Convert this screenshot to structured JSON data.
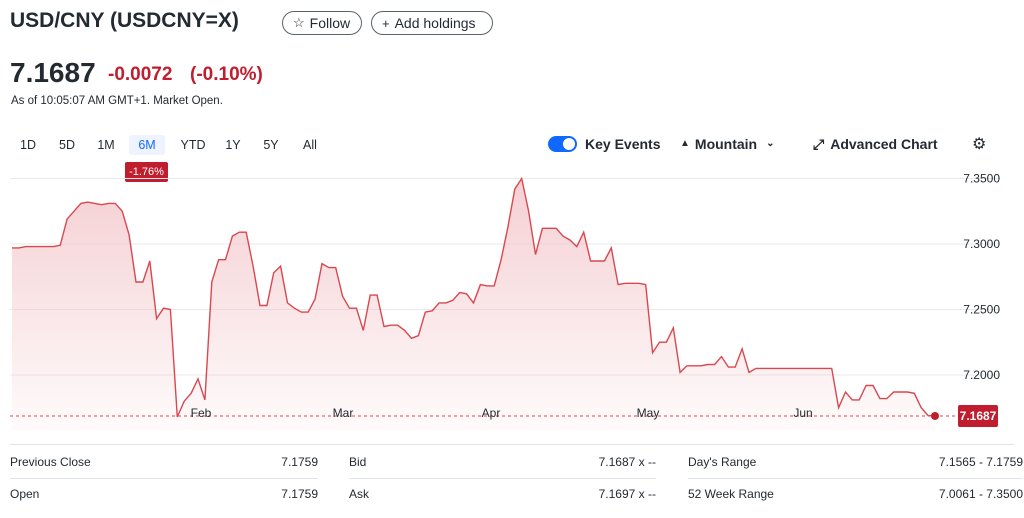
{
  "header": {
    "title": "USD/CNY (USDCNY=X)",
    "follow_label": "Follow",
    "add_holdings_label": "Add holdings"
  },
  "quote": {
    "price": "7.1687",
    "change": "-0.0072",
    "change_pct": "(-0.10%)",
    "as_of": "As of 10:05:07 AM GMT+1. Market Open.",
    "negative_color": "#c01e2e"
  },
  "ranges": [
    "1D",
    "5D",
    "1M",
    "6M",
    "YTD",
    "1Y",
    "5Y",
    "All"
  ],
  "selected_range": "6M",
  "range_performance": "-1.76%",
  "controls": {
    "key_events_label": "Key Events",
    "key_events_on": true,
    "chart_type_label": "Mountain",
    "advanced_label": "Advanced Chart"
  },
  "chart_data": {
    "type": "area",
    "x_ticks": [
      "Feb",
      "Mar",
      "Apr",
      "May",
      "Jun"
    ],
    "y_ticks": [
      "7.3500",
      "7.3000",
      "7.2500",
      "7.2000"
    ],
    "ylim": [
      7.158,
      7.358
    ],
    "last_value_label": "7.1687",
    "series": [
      {
        "values": [
          7.297,
          7.297,
          7.298,
          7.298,
          7.298,
          7.298,
          7.298,
          7.299,
          7.319,
          7.325,
          7.331,
          7.332,
          7.331,
          7.33,
          7.331,
          7.331,
          7.325,
          7.307,
          7.271,
          7.271,
          7.287,
          7.243,
          7.251,
          7.25,
          7.168,
          7.18,
          7.186,
          7.197,
          7.181,
          7.271,
          7.288,
          7.288,
          7.306,
          7.309,
          7.309,
          7.283,
          7.253,
          7.253,
          7.278,
          7.283,
          7.255,
          7.251,
          7.248,
          7.248,
          7.258,
          7.285,
          7.282,
          7.282,
          7.26,
          7.251,
          7.251,
          7.234,
          7.261,
          7.261,
          7.237,
          7.238,
          7.238,
          7.234,
          7.228,
          7.23,
          7.248,
          7.249,
          7.255,
          7.255,
          7.257,
          7.263,
          7.262,
          7.255,
          7.269,
          7.268,
          7.268,
          7.288,
          7.313,
          7.342,
          7.35,
          7.325,
          7.292,
          7.312,
          7.312,
          7.312,
          7.306,
          7.303,
          7.298,
          7.309,
          7.287,
          7.287,
          7.287,
          7.297,
          7.269,
          7.27,
          7.27,
          7.27,
          7.269,
          7.217,
          7.225,
          7.225,
          7.236,
          7.202,
          7.207,
          7.207,
          7.207,
          7.208,
          7.208,
          7.214,
          7.206,
          7.206,
          7.22,
          7.202,
          7.205,
          7.205,
          7.205,
          7.205,
          7.205,
          7.205,
          7.205,
          7.205,
          7.205,
          7.205,
          7.205,
          7.205,
          7.175,
          7.187,
          7.181,
          7.181,
          7.192,
          7.192,
          7.182,
          7.182,
          7.187,
          7.187,
          7.187,
          7.186,
          7.175,
          7.169,
          7.1687
        ]
      }
    ],
    "line_color": "#d9474f",
    "area_color": "#f3c7cb"
  },
  "stats": {
    "col1": [
      {
        "label": "Previous Close",
        "value": "7.1759"
      },
      {
        "label": "Open",
        "value": "7.1759"
      }
    ],
    "col2": [
      {
        "label": "Bid",
        "value": "7.1687 x --"
      },
      {
        "label": "Ask",
        "value": "7.1697 x --"
      }
    ],
    "col3": [
      {
        "label": "Day's Range",
        "value": "7.1565 - 7.1759"
      },
      {
        "label": "52 Week Range",
        "value": "7.0061 - 7.3500"
      }
    ]
  }
}
